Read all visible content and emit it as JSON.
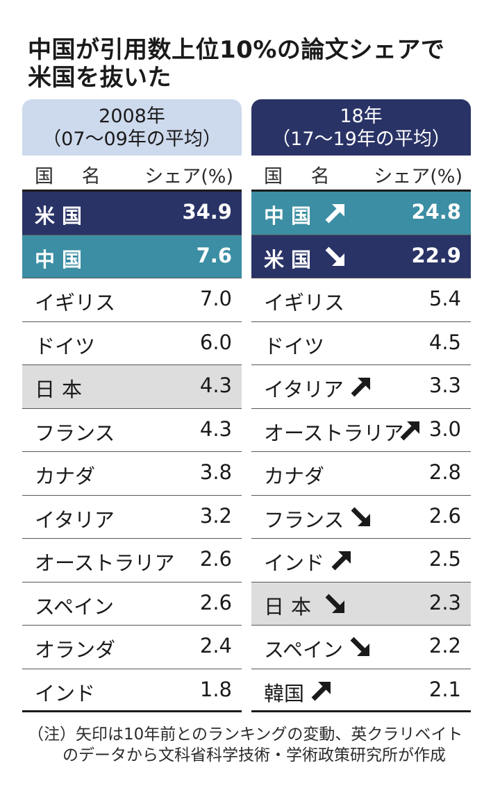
{
  "title": {
    "line1": "中国が引用数上位10%の論文シェアで",
    "line2": "米国を抜いた"
  },
  "chart_data": [
    {
      "type": "table",
      "header_line1": "2008年",
      "header_line2": "（07～09年の平均）",
      "columns": [
        "国 名",
        "シェア(%)"
      ],
      "rows": [
        {
          "country": "米国",
          "share": "34.9",
          "style": "usa",
          "trend": ""
        },
        {
          "country": "中国",
          "share": "7.6",
          "style": "china",
          "trend": ""
        },
        {
          "country": "イギリス",
          "share": "7.0",
          "style": "",
          "trend": ""
        },
        {
          "country": "ドイツ",
          "share": "6.0",
          "style": "",
          "trend": ""
        },
        {
          "country": "日本",
          "share": "4.3",
          "style": "japan",
          "trend": ""
        },
        {
          "country": "フランス",
          "share": "4.3",
          "style": "",
          "trend": ""
        },
        {
          "country": "カナダ",
          "share": "3.8",
          "style": "",
          "trend": ""
        },
        {
          "country": "イタリア",
          "share": "3.2",
          "style": "",
          "trend": ""
        },
        {
          "country": "オーストラリア",
          "share": "2.6",
          "style": "",
          "trend": ""
        },
        {
          "country": "スペイン",
          "share": "2.6",
          "style": "",
          "trend": ""
        },
        {
          "country": "オランダ",
          "share": "2.4",
          "style": "",
          "trend": ""
        },
        {
          "country": "インド",
          "share": "1.8",
          "style": "",
          "trend": ""
        }
      ]
    },
    {
      "type": "table",
      "header_line1": "18年",
      "header_line2": "（17～19年の平均）",
      "columns": [
        "国 名",
        "シェア(%)"
      ],
      "rows": [
        {
          "country": "中国",
          "share": "24.8",
          "style": "china",
          "trend": "up"
        },
        {
          "country": "米国",
          "share": "22.9",
          "style": "usa",
          "trend": "down"
        },
        {
          "country": "イギリス",
          "share": "5.4",
          "style": "",
          "trend": ""
        },
        {
          "country": "ドイツ",
          "share": "4.5",
          "style": "",
          "trend": ""
        },
        {
          "country": "イタリア",
          "share": "3.3",
          "style": "",
          "trend": "up"
        },
        {
          "country": "オーストラリア",
          "share": "3.0",
          "style": "",
          "trend": "up"
        },
        {
          "country": "カナダ",
          "share": "2.8",
          "style": "",
          "trend": ""
        },
        {
          "country": "フランス",
          "share": "2.6",
          "style": "",
          "trend": "down"
        },
        {
          "country": "インド",
          "share": "2.5",
          "style": "",
          "trend": "up"
        },
        {
          "country": "日本",
          "share": "2.3",
          "style": "japan",
          "trend": "down"
        },
        {
          "country": "スペイン",
          "share": "2.2",
          "style": "",
          "trend": "down"
        },
        {
          "country": "韓国",
          "share": "2.1",
          "style": "",
          "trend": "up"
        }
      ]
    }
  ],
  "note": {
    "line1": "（注）矢印は10年前とのランキングの変動、英クラリベイト",
    "line2": "のデータから文科省科学技術・学術政策研究所が作成"
  },
  "colors": {
    "usa": "#2a3366",
    "china": "#3b8ea3",
    "japan": "#dddddd",
    "header_2008": "#cdd9ec",
    "header_18": "#2a3366"
  }
}
